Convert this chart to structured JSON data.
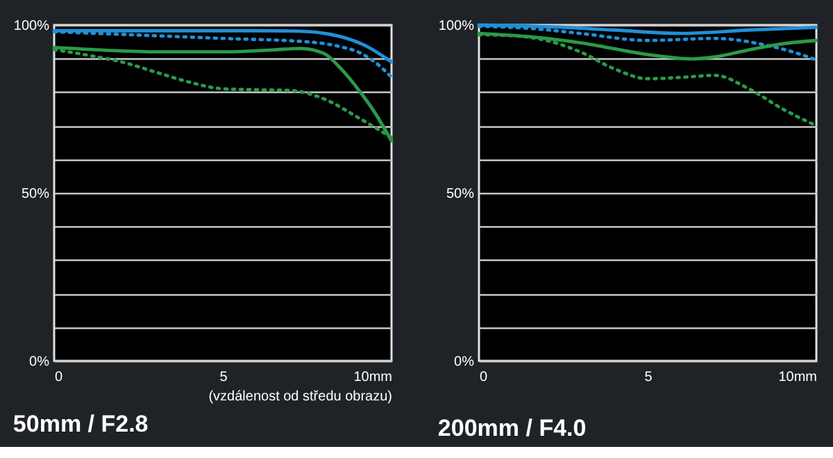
{
  "chart_data": [
    {
      "type": "line",
      "title": "50mm / F2.8",
      "xlabel": "(vzdálenost od středu obrazu)",
      "xlim": [
        0,
        10
      ],
      "ylim": [
        0,
        100
      ],
      "xticks": [
        0,
        5,
        {
          "value": 10,
          "label": "10mm"
        }
      ],
      "yticks": [
        {
          "value": 0,
          "label": "0%"
        },
        {
          "value": 10,
          "label": null
        },
        {
          "value": 20,
          "label": null
        },
        {
          "value": 30,
          "label": null
        },
        {
          "value": 40,
          "label": null
        },
        {
          "value": 50,
          "label": "50%"
        },
        {
          "value": 60,
          "label": null
        },
        {
          "value": 70,
          "label": null
        },
        {
          "value": 80,
          "label": null
        },
        {
          "value": 90,
          "label": null
        },
        {
          "value": 100,
          "label": "100%"
        }
      ],
      "grid": "y",
      "marker": "none",
      "series": [
        {
          "color": "#1e90d8",
          "line_style": "solid",
          "x": [
            0,
            2,
            4,
            6,
            7,
            7.8,
            8.5,
            9.2,
            10
          ],
          "values": [
            98.3,
            98.3,
            98.3,
            98.3,
            98.2,
            97.8,
            96.5,
            94,
            89
          ]
        },
        {
          "color": "#1e90d8",
          "line_style": "dotted",
          "x": [
            0,
            1,
            2.5,
            5,
            7.5,
            8.5,
            9,
            9.5,
            10
          ],
          "values": [
            98,
            97.6,
            97,
            96,
            95,
            93.5,
            92,
            89,
            84.5
          ]
        },
        {
          "color": "#2a9a48",
          "line_style": "solid",
          "x": [
            0,
            1.5,
            3,
            5,
            6.5,
            7.3,
            8,
            8.5,
            9,
            9.5,
            10
          ],
          "values": [
            93.3,
            92.5,
            92,
            92,
            92.6,
            93,
            91.5,
            87,
            81,
            74,
            65.5
          ]
        },
        {
          "color": "#2a9a48",
          "line_style": "dotted",
          "x": [
            0,
            1,
            2,
            3,
            4,
            5,
            6,
            7,
            8,
            9,
            10
          ],
          "values": [
            92.7,
            91,
            89,
            86,
            83,
            81,
            80.7,
            80.5,
            78,
            72.5,
            66.5
          ]
        }
      ]
    },
    {
      "type": "line",
      "title": "200mm / F4.0",
      "xlim": [
        0,
        10
      ],
      "ylim": [
        0,
        100
      ],
      "xticks": [
        0,
        5,
        {
          "value": 10,
          "label": "10mm"
        }
      ],
      "yticks": [
        {
          "value": 0,
          "label": "0%"
        },
        {
          "value": 10,
          "label": null
        },
        {
          "value": 20,
          "label": null
        },
        {
          "value": 30,
          "label": null
        },
        {
          "value": 40,
          "label": null
        },
        {
          "value": 50,
          "label": "50%"
        },
        {
          "value": 60,
          "label": null
        },
        {
          "value": 70,
          "label": null
        },
        {
          "value": 80,
          "label": null
        },
        {
          "value": 90,
          "label": null
        },
        {
          "value": 100,
          "label": "100%"
        }
      ],
      "grid": "y",
      "marker": "none",
      "series": [
        {
          "color": "#1e90d8",
          "line_style": "solid",
          "x": [
            0,
            2,
            4,
            6,
            8,
            10
          ],
          "values": [
            100,
            99.5,
            98.5,
            97.5,
            98.5,
            99.3
          ]
        },
        {
          "color": "#1e90d8",
          "line_style": "dotted",
          "x": [
            0,
            1.5,
            3,
            5,
            7,
            8.5,
            9.3,
            10
          ],
          "values": [
            99.6,
            99,
            97.5,
            95.4,
            96,
            94,
            92,
            89.6
          ]
        },
        {
          "color": "#2a9a48",
          "line_style": "solid",
          "x": [
            0,
            1.5,
            3,
            5,
            6.3,
            7,
            8,
            9,
            10
          ],
          "values": [
            97.5,
            96.5,
            94.7,
            91.2,
            89.9,
            90.5,
            92.6,
            94.4,
            95.4
          ]
        },
        {
          "color": "#2a9a48",
          "line_style": "dotted",
          "x": [
            0,
            1,
            2,
            3,
            4,
            5,
            6,
            7,
            8,
            9,
            10
          ],
          "values": [
            97.1,
            96.8,
            95.4,
            92,
            87,
            84,
            84.4,
            85,
            81,
            75,
            70
          ]
        }
      ]
    }
  ]
}
